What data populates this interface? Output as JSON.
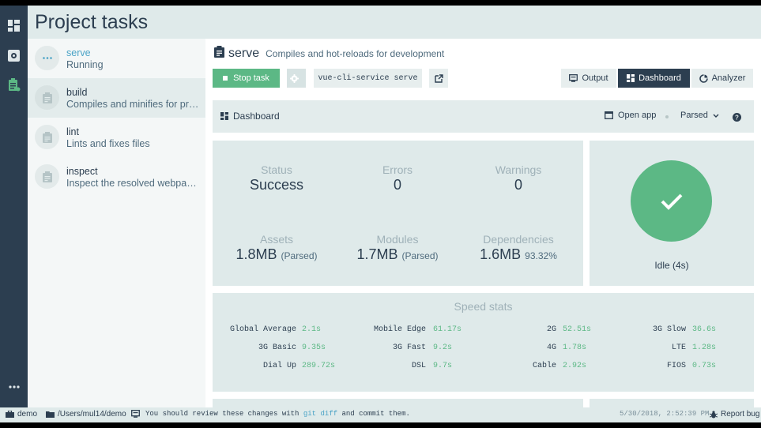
{
  "header": {
    "title": "Project tasks"
  },
  "rail": {
    "icons": [
      "dashboard-icon",
      "plugins-icon",
      "tasks-icon",
      "more-icon"
    ]
  },
  "tasks": [
    {
      "name": "serve",
      "description": "Running",
      "icon": "dots-icon"
    },
    {
      "name": "build",
      "description": "Compiles and minifies for production",
      "icon": "clipboard-icon"
    },
    {
      "name": "lint",
      "description": "Lints and fixes files",
      "icon": "clipboard-icon"
    },
    {
      "name": "inspect",
      "description": "Inspect the resolved webpack config",
      "icon": "clipboard-icon"
    }
  ],
  "main": {
    "task_name": "serve",
    "task_description": "Compiles and hot-reloads for development",
    "stop_label": "Stop task",
    "command": "vue-cli-service serve",
    "tabs": {
      "output": "Output",
      "dashboard": "Dashboard",
      "analyzer": "Analyzer"
    }
  },
  "dashboard": {
    "title": "Dashboard",
    "open_app": "Open app",
    "mode": "Parsed",
    "stats": {
      "status_label": "Status",
      "status_value": "Success",
      "errors_label": "Errors",
      "errors_value": "0",
      "warnings_label": "Warnings",
      "warnings_value": "0",
      "assets_label": "Assets",
      "assets_value": "1.8MB",
      "assets_sub": "(Parsed)",
      "modules_label": "Modules",
      "modules_value": "1.7MB",
      "modules_sub": "(Parsed)",
      "deps_label": "Dependencies",
      "deps_value": "1.6MB",
      "deps_sub": "93.32%"
    },
    "idle_text": "Idle (4s)",
    "speed_title": "Speed stats",
    "speed": [
      [
        {
          "label": "Global Average",
          "value": "2.1s"
        },
        {
          "label": "Mobile Edge",
          "value": "61.17s"
        },
        {
          "label": "2G",
          "value": "52.51s"
        },
        {
          "label": "3G Slow",
          "value": "36.6s"
        }
      ],
      [
        {
          "label": "3G Basic",
          "value": "9.35s"
        },
        {
          "label": "3G Fast",
          "value": "9.2s"
        },
        {
          "label": "4G",
          "value": "1.78s"
        },
        {
          "label": "LTE",
          "value": "1.28s"
        }
      ],
      [
        {
          "label": "Dial Up",
          "value": "289.72s"
        },
        {
          "label": "DSL",
          "value": "9.7s"
        },
        {
          "label": "Cable",
          "value": "2.92s"
        },
        {
          "label": "FIOS",
          "value": "0.73s"
        }
      ]
    ]
  },
  "statusbar": {
    "project": "demo",
    "path": "/Users/mul14/demo",
    "message_pre": "You should review these changes with",
    "message_link": "git diff",
    "message_post": "and commit them.",
    "datetime": "5/30/2018, 2:52:39 PM",
    "report": "Report bug"
  },
  "colors": {
    "accent": "#5cb885",
    "dark": "#2c3e50",
    "link": "#4aa3c6",
    "panel": "#dfeaea"
  }
}
